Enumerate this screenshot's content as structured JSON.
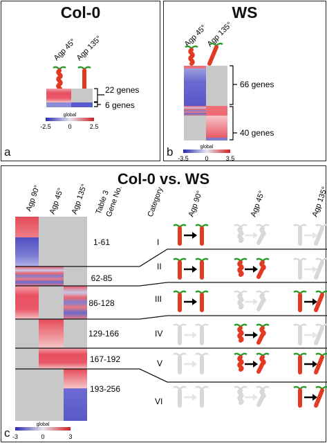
{
  "panel_a": {
    "title": "Col-0",
    "label": "a",
    "col_labels": [
      "Agp 45°",
      "Agp 135°"
    ],
    "groups": [
      "22 genes",
      "6 genes"
    ],
    "legend": {
      "title": "global",
      "min": "-2.5",
      "mid": "0",
      "max": "2.5"
    }
  },
  "panel_b": {
    "title": "WS",
    "label": "b",
    "col_labels": [
      "Agp 45°",
      "Agp 135°"
    ],
    "groups": [
      "66 genes",
      "40 genes"
    ],
    "legend": {
      "title": "global",
      "min": "-3.5",
      "mid": "0",
      "max": "3.5"
    }
  },
  "panel_c": {
    "title": "Col-0 vs. WS",
    "label": "c",
    "col_labels": [
      "Agp 90°",
      "Agp 45°",
      "Agp 135°"
    ],
    "table_header": "Table 3 Gene No.",
    "category_header": "Category",
    "category_cols": [
      "Agp 90°",
      "Agp 45°",
      "Agp 135°"
    ],
    "rows": [
      {
        "genes": "1-61",
        "category": "I"
      },
      {
        "genes": "62-85",
        "category": "II"
      },
      {
        "genes": "86-128",
        "category": "III"
      },
      {
        "genes": "129-166",
        "category": "IV"
      },
      {
        "genes": "167-192",
        "category": "V"
      },
      {
        "genes": "193-256",
        "category": "VI"
      }
    ],
    "legend": {
      "title": "global",
      "min": "-3",
      "mid": "0",
      "max": "3"
    }
  },
  "colors": {
    "up": "#e8505b",
    "down": "#5555c8",
    "neutral": "#c8c8c8",
    "plant": "#e23a22",
    "leaf": "#2a9a2a"
  }
}
